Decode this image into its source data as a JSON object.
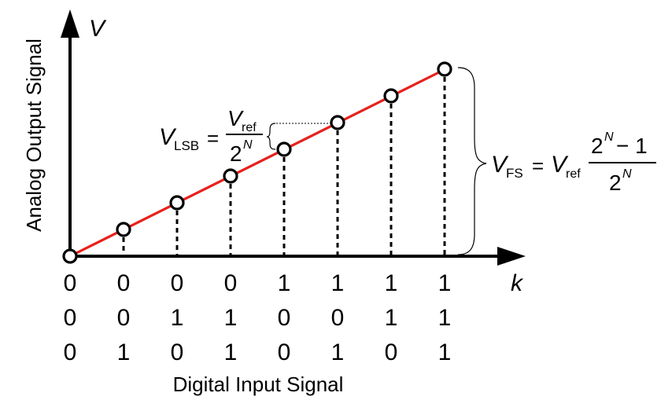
{
  "y_axis": {
    "symbol": "V",
    "label": "Analog Output Signal"
  },
  "x_axis": {
    "symbol": "k",
    "label": "Digital Input Signal"
  },
  "codes": [
    [
      "0",
      "0",
      "0"
    ],
    [
      "0",
      "0",
      "1"
    ],
    [
      "0",
      "1",
      "0"
    ],
    [
      "0",
      "1",
      "1"
    ],
    [
      "1",
      "0",
      "0"
    ],
    [
      "1",
      "0",
      "1"
    ],
    [
      "1",
      "1",
      "0"
    ],
    [
      "1",
      "1",
      "1"
    ]
  ],
  "vlsb": {
    "lhs_symbol": "V",
    "lhs_sub": "LSB",
    "equals": "=",
    "num_symbol": "V",
    "num_sub": "ref",
    "den_base": "2",
    "den_exp": "N"
  },
  "vfs": {
    "lhs_symbol": "V",
    "lhs_sub": "FS",
    "equals": "=",
    "factor_symbol": "V",
    "factor_sub": "ref",
    "num_base": "2",
    "num_exp": "N",
    "num_minus": "− 1",
    "den_base": "2",
    "den_exp": "N"
  },
  "colors": {
    "line": "#e8201c",
    "axis": "#000000",
    "marker_fill": "#ffffff",
    "marker_stroke": "#000000"
  }
}
